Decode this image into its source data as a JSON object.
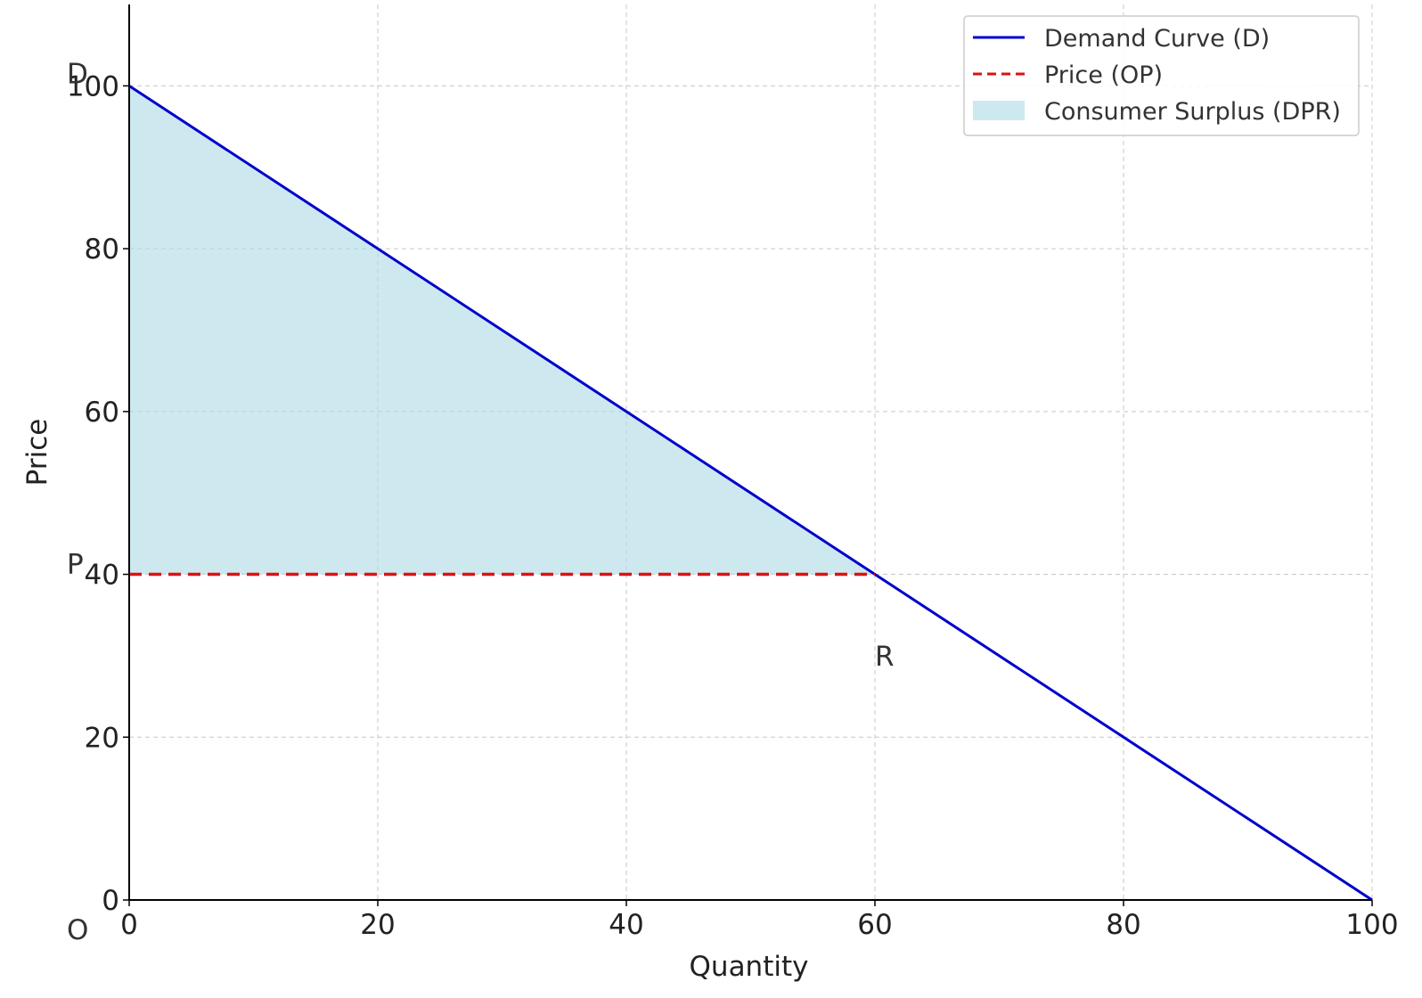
{
  "chart_data": {
    "type": "line",
    "title": "",
    "xlabel": "Quantity",
    "ylabel": "Price",
    "xlim": [
      0,
      100
    ],
    "ylim": [
      0,
      110
    ],
    "x_ticks": [
      0,
      20,
      40,
      60,
      80,
      100
    ],
    "y_ticks": [
      0,
      20,
      40,
      60,
      80,
      100
    ],
    "grid": true,
    "legend_position": "top-right",
    "series": [
      {
        "name": "Demand Curve (D)",
        "kind": "line",
        "style": "solid",
        "color": "#0000cc",
        "x": [
          0,
          100
        ],
        "y": [
          100,
          0
        ]
      },
      {
        "name": "Price (OP)",
        "kind": "line",
        "style": "dashed",
        "color": "#dd1111",
        "x": [
          0,
          60
        ],
        "y": [
          40,
          40
        ]
      },
      {
        "name": "Consumer Surplus (DPR)",
        "kind": "area",
        "color": "#add8e6",
        "x": [
          0,
          60
        ],
        "y_upper": [
          100,
          40
        ],
        "y_lower": [
          40,
          40
        ]
      }
    ],
    "annotations": [
      {
        "text": "D",
        "x": 0,
        "y": 100
      },
      {
        "text": "P",
        "x": 0,
        "y": 40
      },
      {
        "text": "R",
        "x": 60,
        "y": 30
      },
      {
        "text": "O",
        "x": 0,
        "y": 0
      }
    ]
  }
}
